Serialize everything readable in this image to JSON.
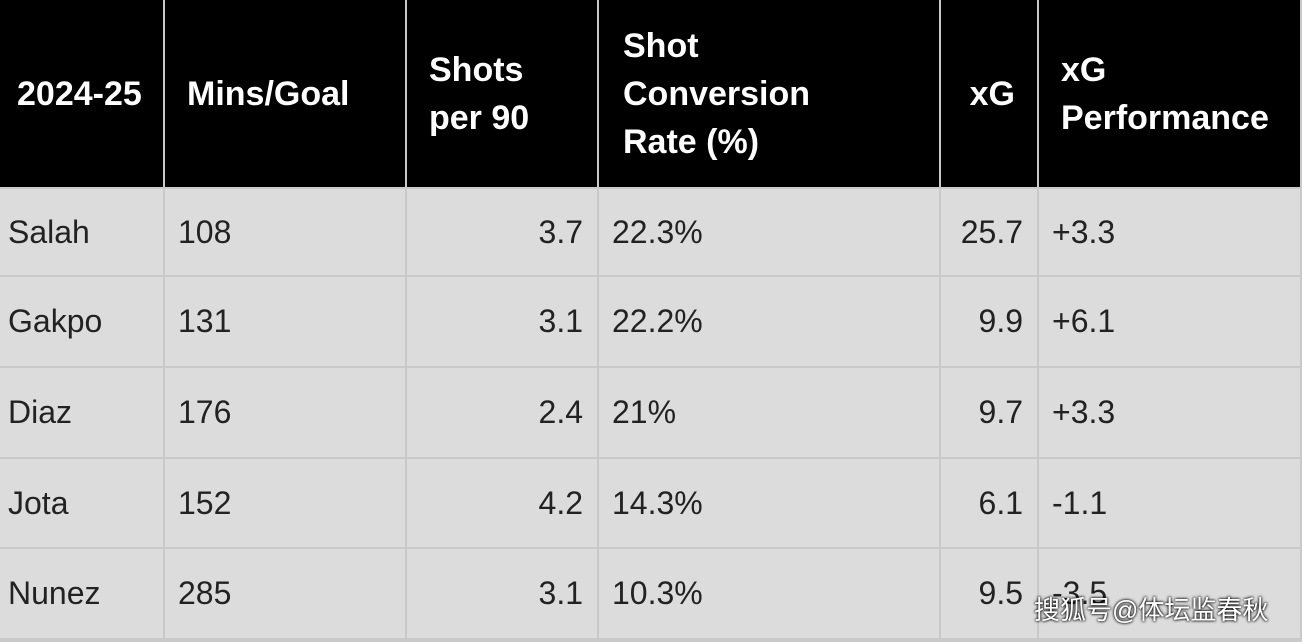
{
  "table": {
    "header": [
      "2024-25",
      "Mins/Goal",
      "Shots per 90",
      "Shot Conversion Rate (%)",
      "xG",
      "xG Performance"
    ],
    "rows": [
      [
        "Salah",
        "108",
        "3.7",
        "22.3%",
        "25.7",
        "+3.3"
      ],
      [
        "Gakpo",
        "131",
        "3.1",
        "22.2%",
        "9.9",
        "+6.1"
      ],
      [
        "Diaz",
        "176",
        "2.4",
        "21%",
        "9.7",
        "+3.3"
      ],
      [
        "Jota",
        "152",
        "4.2",
        "14.3%",
        "6.1",
        "-1.1"
      ],
      [
        "Nunez",
        "285",
        "3.1",
        "10.3%",
        "9.5",
        "-3.5"
      ]
    ]
  },
  "watermark": "搜狐号@体坛监春秋"
}
